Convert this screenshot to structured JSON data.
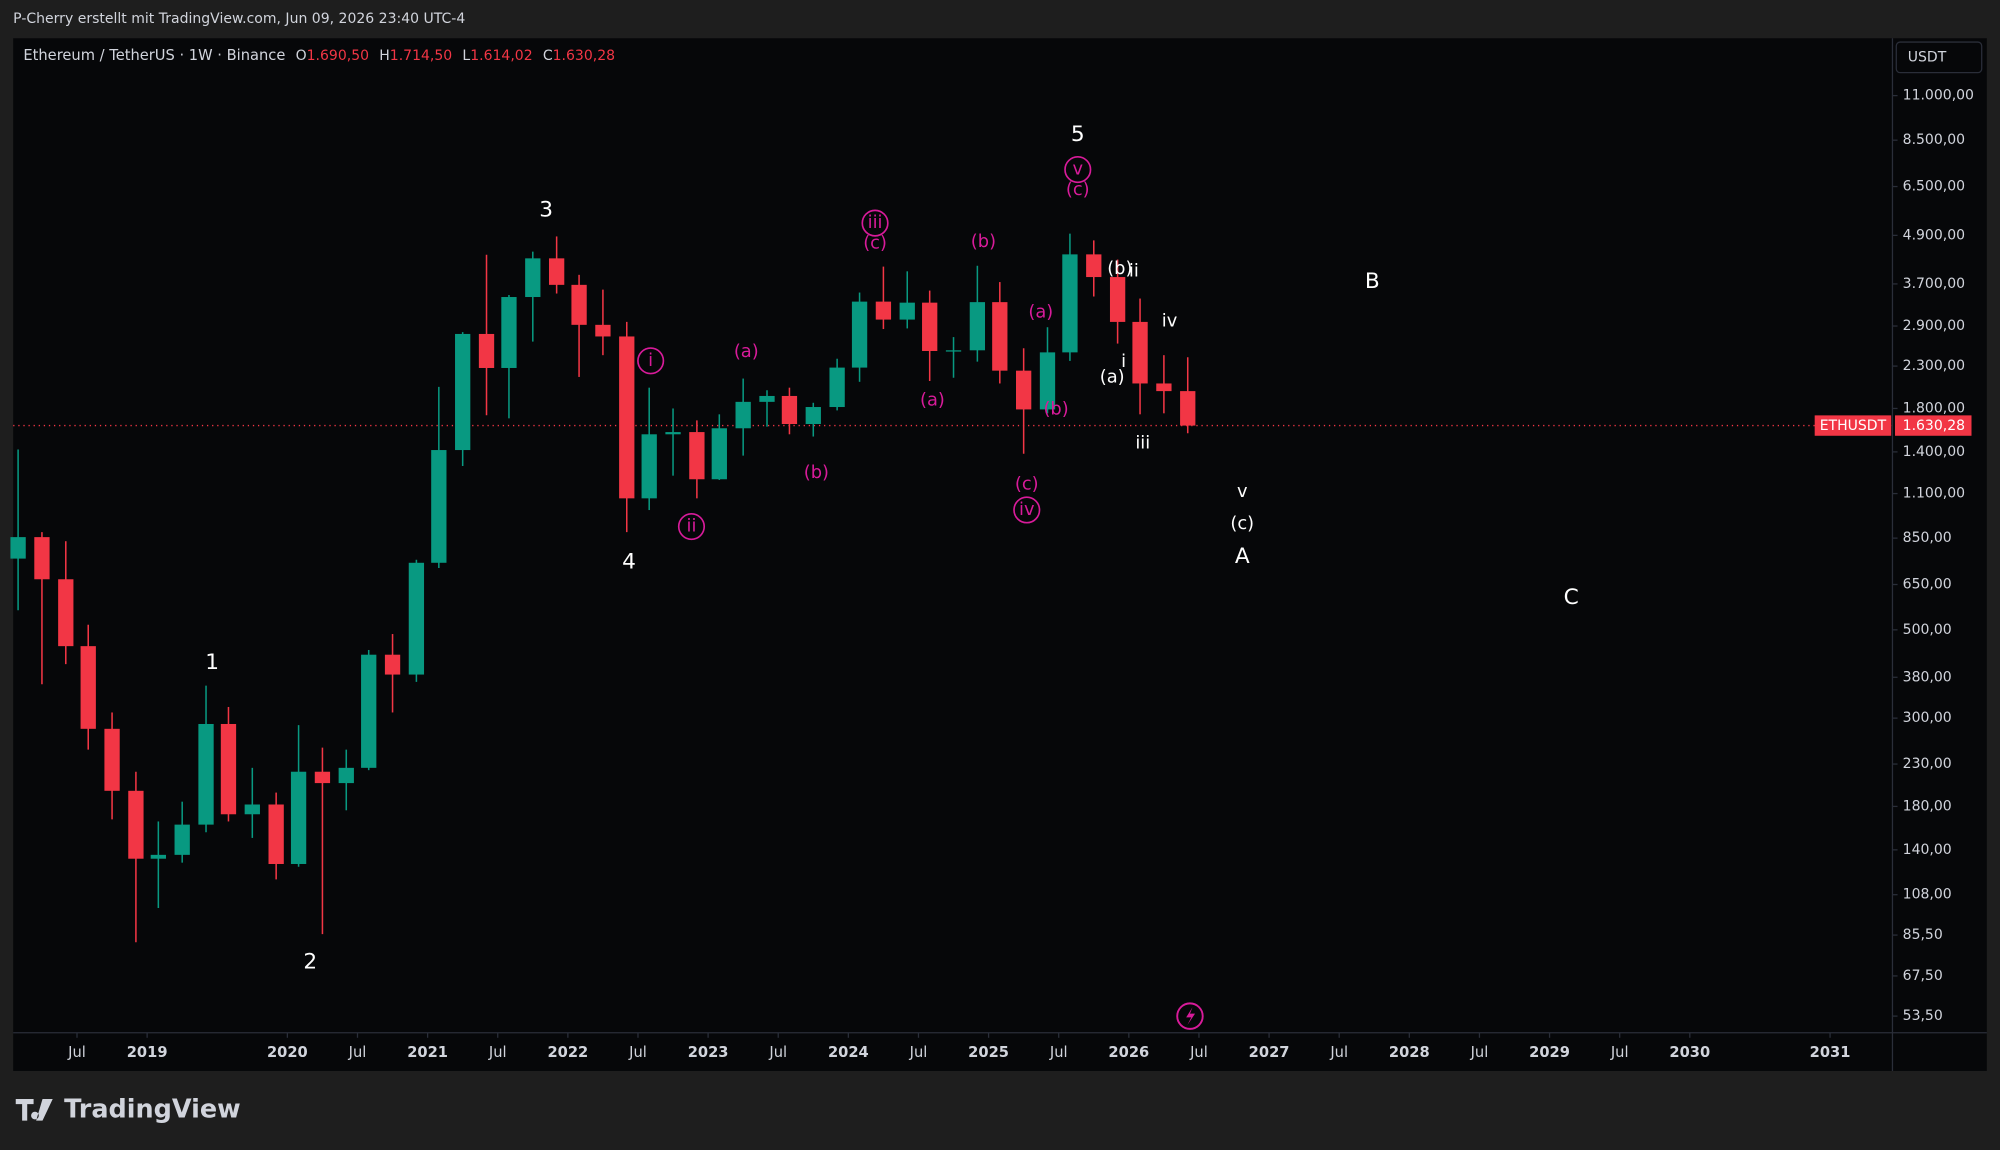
{
  "header": {
    "attribution": "P-Cherry erstellt mit TradingView.com, Jun 09, 2026 23:40 UTC-4"
  },
  "footer": {
    "logo": "TradingView"
  },
  "chart_data": {
    "type": "candlestick",
    "symbol": "Ethereum / TetherUS · 1W · Binance",
    "ohlc": [
      {
        "key": "O",
        "label": "1.690,50"
      },
      {
        "key": "H",
        "label": "1.714,50"
      },
      {
        "key": "L",
        "label": "1.614,02"
      },
      {
        "key": "C",
        "label": "1.630,28"
      }
    ],
    "currency": "USDT",
    "symbol_tag": "ETHUSDT",
    "last_price": {
      "value": 1630.28,
      "label": "1.630,28"
    },
    "up_color": "#089981",
    "down_color": "#f23645",
    "log_scale": true,
    "xlim": [
      2018.045,
      2031.445
    ],
    "ylim": [
      48.6,
      15330
    ],
    "xticks": [
      {
        "value": 2018.5,
        "label": "Jul"
      },
      {
        "value": 2019,
        "label": "2019"
      },
      {
        "value": 2020,
        "label": "2020"
      },
      {
        "value": 2020.5,
        "label": "Jul"
      },
      {
        "value": 2021,
        "label": "2021"
      },
      {
        "value": 2021.5,
        "label": "Jul"
      },
      {
        "value": 2022,
        "label": "2022"
      },
      {
        "value": 2022.5,
        "label": "Jul"
      },
      {
        "value": 2023,
        "label": "2023"
      },
      {
        "value": 2023.5,
        "label": "Jul"
      },
      {
        "value": 2024,
        "label": "2024"
      },
      {
        "value": 2024.5,
        "label": "Jul"
      },
      {
        "value": 2025,
        "label": "2025"
      },
      {
        "value": 2025.5,
        "label": "Jul"
      },
      {
        "value": 2026,
        "label": "2026"
      },
      {
        "value": 2026.5,
        "label": "Jul"
      },
      {
        "value": 2027,
        "label": "2027"
      },
      {
        "value": 2027.5,
        "label": "Jul"
      },
      {
        "value": 2028,
        "label": "2028"
      },
      {
        "value": 2028.5,
        "label": "Jul"
      },
      {
        "value": 2029,
        "label": "2029"
      },
      {
        "value": 2029.5,
        "label": "Jul"
      },
      {
        "value": 2030,
        "label": "2030"
      },
      {
        "value": 2031,
        "label": "2031"
      }
    ],
    "yticks": [
      {
        "value": 11000,
        "label": "11.000,00"
      },
      {
        "value": 8500,
        "label": "8.500,00"
      },
      {
        "value": 6500,
        "label": "6.500,00"
      },
      {
        "value": 4900,
        "label": "4.900,00"
      },
      {
        "value": 3700,
        "label": "3.700,00"
      },
      {
        "value": 2900,
        "label": "2.900,00"
      },
      {
        "value": 2300,
        "label": "2.300,00"
      },
      {
        "value": 1800,
        "label": "1.800,00"
      },
      {
        "value": 1400,
        "label": "1.400,00"
      },
      {
        "value": 1100,
        "label": "1.100,00"
      },
      {
        "value": 850,
        "label": "850,00"
      },
      {
        "value": 650,
        "label": "650,00"
      },
      {
        "value": 500,
        "label": "500,00"
      },
      {
        "value": 380,
        "label": "380,00"
      },
      {
        "value": 300,
        "label": "300,00"
      },
      {
        "value": 230,
        "label": "230,00"
      },
      {
        "value": 180,
        "label": "180,00"
      },
      {
        "value": 140,
        "label": "140,00"
      },
      {
        "value": 108,
        "label": "108,00"
      },
      {
        "value": 85.5,
        "label": "85,50"
      },
      {
        "value": 67.5,
        "label": "67,50"
      },
      {
        "value": 53.5,
        "label": "53,50"
      }
    ],
    "x": [
      2018.08,
      2018.25,
      2018.42,
      2018.58,
      2018.75,
      2018.92,
      2019.08,
      2019.25,
      2019.42,
      2019.58,
      2019.75,
      2019.92,
      2020.08,
      2020.25,
      2020.42,
      2020.58,
      2020.75,
      2020.92,
      2021.08,
      2021.25,
      2021.42,
      2021.58,
      2021.75,
      2021.92,
      2022.08,
      2022.25,
      2022.42,
      2022.58,
      2022.75,
      2022.92,
      2023.08,
      2023.25,
      2023.42,
      2023.58,
      2023.75,
      2023.92,
      2024.08,
      2024.25,
      2024.42,
      2024.58,
      2024.75,
      2024.92,
      2025.08,
      2025.25,
      2025.42,
      2025.58,
      2025.75,
      2025.92,
      2026.08,
      2026.25,
      2026.42
    ],
    "open": [
      755,
      855,
      670,
      455,
      282,
      197,
      133,
      136,
      162,
      290,
      172,
      182,
      129,
      220,
      206,
      225,
      433,
      386,
      737,
      1415,
      2770,
      2275,
      3430,
      4290,
      3680,
      2920,
      2730,
      1070,
      1550,
      1570,
      1195,
      1605,
      1870,
      1935,
      1645,
      1815,
      2280,
      3340,
      3010,
      3320,
      2510,
      2520,
      3330,
      2240,
      1790,
      2490,
      4390,
      3850,
      2970,
      2080,
      1990
    ],
    "high": [
      1420,
      880,
      835,
      515,
      310,
      220,
      165,
      185,
      362,
      320,
      225,
      195,
      288,
      253,
      250,
      445,
      488,
      750,
      2040,
      2800,
      4380,
      3470,
      4460,
      4870,
      3900,
      3580,
      2970,
      2030,
      1800,
      1680,
      1740,
      2140,
      2000,
      2030,
      1860,
      2400,
      3520,
      4090,
      3980,
      3560,
      2720,
      4110,
      3740,
      2550,
      2880,
      4950,
      4760,
      4260,
      3400,
      2450,
      2420
    ],
    "low": [
      560,
      365,
      410,
      250,
      167,
      82,
      100,
      130,
      155,
      165,
      150,
      118,
      127,
      86,
      176,
      222,
      310,
      370,
      715,
      1290,
      1730,
      1700,
      2650,
      3500,
      2160,
      2450,
      880,
      1000,
      1220,
      1070,
      1190,
      1370,
      1620,
      1550,
      1530,
      1780,
      2100,
      2850,
      2860,
      2110,
      2150,
      2360,
      2080,
      1385,
      1750,
      2370,
      3440,
      2620,
      1740,
      1750,
      1560
    ],
    "close": [
      855,
      670,
      455,
      282,
      197,
      133,
      136,
      162,
      290,
      172,
      182,
      129,
      220,
      206,
      225,
      433,
      386,
      737,
      1415,
      2770,
      2275,
      3430,
      4290,
      3680,
      2920,
      2730,
      1070,
      1550,
      1570,
      1195,
      1605,
      1870,
      1935,
      1645,
      1815,
      2280,
      3340,
      3010,
      3320,
      2510,
      2520,
      3330,
      2240,
      1790,
      2490,
      4390,
      3850,
      2970,
      2080,
      1990,
      1630.28
    ],
    "annotations": [
      {
        "text": "1",
        "color": "#ffffff",
        "circled": false
      },
      {
        "text": "2",
        "color": "#ffffff",
        "circled": false
      },
      {
        "text": "3",
        "color": "#ffffff",
        "circled": false
      },
      {
        "text": "4",
        "color": "#ffffff",
        "circled": false
      },
      {
        "text": "5",
        "color": "#ffffff",
        "circled": false
      },
      {
        "text": "(b)",
        "color": "#ffffff",
        "circled": false
      },
      {
        "text": "ii",
        "color": "#ffffff",
        "circled": false
      },
      {
        "text": "i",
        "color": "#ffffff",
        "circled": false
      },
      {
        "text": "(a)",
        "color": "#ffffff",
        "circled": false
      },
      {
        "text": "iv",
        "color": "#ffffff",
        "circled": false
      },
      {
        "text": "iii",
        "color": "#ffffff",
        "circled": false
      },
      {
        "text": "v",
        "color": "#ffffff",
        "circled": false
      },
      {
        "text": "(c)",
        "color": "#ffffff",
        "circled": false
      },
      {
        "text": "A",
        "color": "#ffffff",
        "circled": false
      },
      {
        "text": "B",
        "color": "#ffffff",
        "circled": false
      },
      {
        "text": "C",
        "color": "#ffffff",
        "circled": false
      },
      {
        "text": "i",
        "color": "#d81b9a",
        "circled": true
      },
      {
        "text": "ii",
        "color": "#d81b9a",
        "circled": true
      },
      {
        "text": "(a)",
        "color": "#d81b9a",
        "circled": false
      },
      {
        "text": "(b)",
        "color": "#d81b9a",
        "circled": false
      },
      {
        "text": "iii",
        "color": "#d81b9a",
        "circled": true
      },
      {
        "text": "(c)",
        "color": "#d81b9a",
        "circled": false
      },
      {
        "text": "(a)",
        "color": "#d81b9a",
        "circled": false
      },
      {
        "text": "(b)",
        "color": "#d81b9a",
        "circled": false
      },
      {
        "text": "(a)",
        "color": "#d81b9a",
        "circled": false
      },
      {
        "text": "(b)",
        "color": "#d81b9a",
        "circled": false
      },
      {
        "text": "(c)",
        "color": "#d81b9a",
        "circled": false
      },
      {
        "text": "iv",
        "color": "#d81b9a",
        "circled": true
      },
      {
        "text": "v",
        "color": "#d81b9a",
        "circled": true
      },
      {
        "text": "(c)",
        "color": "#d81b9a",
        "circled": false
      }
    ]
  }
}
